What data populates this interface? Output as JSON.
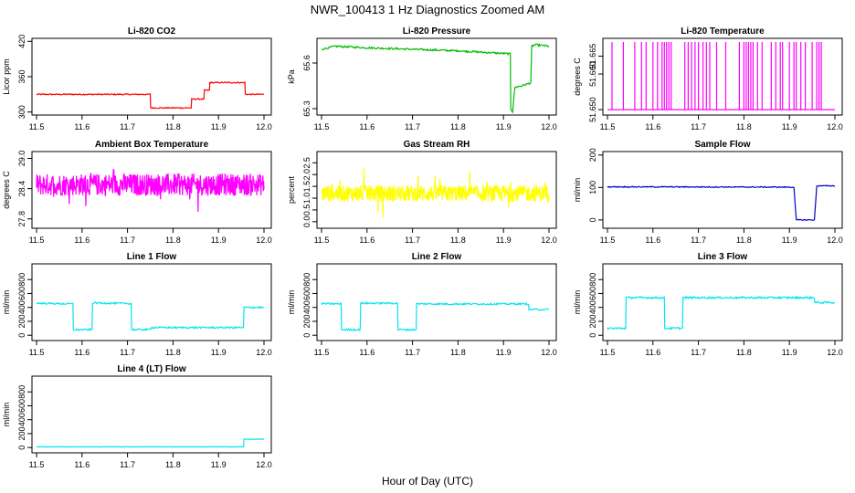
{
  "main_title": "NWR_100413  1 Hz Diagnostics Zoomed AM",
  "xlabel": "Hour of Day (UTC)",
  "chart_data": [
    {
      "type": "line",
      "title": "Li-820 CO2",
      "ylabel": "Licor ppm",
      "color": "#ff0000",
      "xlim": [
        11.5,
        12.0
      ],
      "ylim": [
        298,
        422
      ],
      "yticks": [
        "300",
        "360",
        "420"
      ],
      "ytick_values": [
        300,
        360,
        420
      ],
      "xticks": [
        "11.5",
        "11.6",
        "11.7",
        "11.8",
        "11.9",
        "12.0"
      ],
      "noise": 1,
      "series": [
        {
          "x": [
            11.5,
            11.75,
            11.751,
            11.84,
            11.841,
            11.868,
            11.869,
            11.88,
            11.881,
            11.958,
            11.959,
            12.0
          ],
          "y": [
            330,
            330,
            307,
            307,
            322,
            322,
            337,
            337,
            350,
            350,
            330,
            330
          ]
        }
      ]
    },
    {
      "type": "line",
      "title": "Li-820 Pressure",
      "ylabel": "kPa",
      "color": "#00bb00",
      "xlim": [
        11.5,
        12.0
      ],
      "ylim": [
        65.27,
        65.75
      ],
      "yticks": [
        "65.3",
        "65.6"
      ],
      "ytick_values": [
        65.3,
        65.6
      ],
      "xticks": [
        "11.5",
        "11.6",
        "11.7",
        "11.8",
        "11.9",
        "12.0"
      ],
      "noise": 0.006,
      "series": [
        {
          "x": [
            11.5,
            11.53,
            11.6,
            11.8,
            11.915,
            11.916,
            11.92,
            11.925,
            11.94,
            11.95,
            11.96,
            11.962,
            11.97,
            12.0
          ],
          "y": [
            65.69,
            65.71,
            65.7,
            65.68,
            65.66,
            65.3,
            65.28,
            65.44,
            65.45,
            65.46,
            65.47,
            65.71,
            65.72,
            65.71
          ]
        }
      ]
    },
    {
      "type": "line",
      "title": "Li-820 Temperature",
      "ylabel": "degrees C",
      "color": "#ff00ff",
      "xlim": [
        11.5,
        12.0
      ],
      "ylim": [
        51.649,
        51.6695
      ],
      "yticks": [
        "51.650",
        "51.660",
        "51.665"
      ],
      "ytick_values": [
        51.65,
        51.66,
        51.665
      ],
      "xticks": [
        "11.5",
        "11.6",
        "11.7",
        "11.8",
        "11.9",
        "12.0"
      ],
      "mode": "spikes",
      "base": 51.65,
      "peak": 51.669,
      "spike_x": [
        11.51,
        11.535,
        11.56,
        11.575,
        11.585,
        11.6,
        11.61,
        11.62,
        11.625,
        11.63,
        11.635,
        11.64,
        11.67,
        11.678,
        11.685,
        11.692,
        11.7,
        11.71,
        11.718,
        11.725,
        11.74,
        11.76,
        11.79,
        11.8,
        11.805,
        11.81,
        11.815,
        11.82,
        11.83,
        11.84,
        11.86,
        11.87,
        11.88,
        11.885,
        11.9,
        11.91,
        11.915,
        11.925,
        11.935,
        11.95,
        11.96,
        11.965,
        11.97
      ]
    },
    {
      "type": "line",
      "title": "Ambient Box Temperature",
      "ylabel": "degrees C",
      "color": "#ff00ff",
      "xlim": [
        11.5,
        12.0
      ],
      "ylim": [
        27.65,
        29.1
      ],
      "yticks": [
        "27.8",
        "28.4",
        "29.0"
      ],
      "ytick_values": [
        27.8,
        28.4,
        29.0
      ],
      "xticks": [
        "11.5",
        "11.6",
        "11.7",
        "11.8",
        "11.9",
        "12.0"
      ],
      "mode": "noise",
      "mean": 28.48,
      "amp": 0.22,
      "outlier": 0.5
    },
    {
      "type": "line",
      "title": "Gas Stream RH",
      "ylabel": "percent",
      "color": "#ffff00",
      "xlim": [
        11.5,
        12.0
      ],
      "ylim": [
        -0.2,
        2.9
      ],
      "yticks": [
        "0.0",
        "0.5",
        "1.0",
        "1.5",
        "2.0",
        "2.5"
      ],
      "ytick_values": [
        0,
        0.5,
        1.0,
        1.5,
        2.0,
        2.5
      ],
      "xticks": [
        "11.5",
        "11.6",
        "11.7",
        "11.8",
        "11.9",
        "12.0"
      ],
      "mode": "noise",
      "mean": 1.2,
      "amp": 0.35,
      "outlier": 0.9
    },
    {
      "type": "line",
      "title": "Sample Flow",
      "ylabel": "ml/min",
      "color": "#0000cc",
      "xlim": [
        11.5,
        12.0
      ],
      "ylim": [
        -20,
        205
      ],
      "yticks": [
        "0",
        "100",
        "200"
      ],
      "ytick_values": [
        0,
        100,
        200
      ],
      "xticks": [
        "11.5",
        "11.6",
        "11.7",
        "11.8",
        "11.9",
        "12.0"
      ],
      "noise": 1.5,
      "series": [
        {
          "x": [
            11.5,
            11.91,
            11.915,
            11.955,
            11.96,
            12.0
          ],
          "y": [
            102,
            101,
            0,
            0,
            105,
            105
          ]
        }
      ]
    },
    {
      "type": "line",
      "title": "Line 1 Flow",
      "ylabel": "ml/min",
      "color": "#00e5ee",
      "xlim": [
        11.5,
        12.0
      ],
      "ylim": [
        -50,
        1000
      ],
      "yticks": [
        "0",
        "200",
        "400",
        "600",
        "800"
      ],
      "ytick_values": [
        0,
        200,
        400,
        600,
        800
      ],
      "xticks": [
        "11.5",
        "11.6",
        "11.7",
        "11.8",
        "11.9",
        "12.0"
      ],
      "noise": 12,
      "series": [
        {
          "x": [
            11.5,
            11.58,
            11.581,
            11.622,
            11.623,
            11.708,
            11.709,
            11.75,
            11.751,
            11.955,
            11.956,
            12.0
          ],
          "y": [
            460,
            450,
            80,
            80,
            465,
            455,
            80,
            80,
            110,
            110,
            400,
            400
          ]
        }
      ]
    },
    {
      "type": "line",
      "title": "Line 2 Flow",
      "ylabel": "ml/min",
      "color": "#00e5ee",
      "xlim": [
        11.5,
        12.0
      ],
      "ylim": [
        -50,
        1000
      ],
      "yticks": [
        "0",
        "200",
        "400",
        "600",
        "800"
      ],
      "ytick_values": [
        0,
        200,
        400,
        600,
        800
      ],
      "xticks": [
        "11.5",
        "11.6",
        "11.7",
        "11.8",
        "11.9",
        "12.0"
      ],
      "noise": 12,
      "series": [
        {
          "x": [
            11.5,
            11.543,
            11.544,
            11.585,
            11.586,
            11.667,
            11.668,
            11.708,
            11.709,
            11.955,
            11.956,
            12.0
          ],
          "y": [
            455,
            450,
            80,
            80,
            460,
            460,
            80,
            80,
            450,
            450,
            370,
            370
          ]
        }
      ]
    },
    {
      "type": "line",
      "title": "Line 3 Flow",
      "ylabel": "ml/min",
      "color": "#00e5ee",
      "xlim": [
        11.5,
        12.0
      ],
      "ylim": [
        -50,
        1000
      ],
      "yticks": [
        "0",
        "200",
        "400",
        "600",
        "800"
      ],
      "ytick_values": [
        0,
        200,
        400,
        600,
        800
      ],
      "xticks": [
        "11.5",
        "11.6",
        "11.7",
        "11.8",
        "11.9",
        "12.0"
      ],
      "noise": 14,
      "series": [
        {
          "x": [
            11.5,
            11.54,
            11.541,
            11.625,
            11.626,
            11.665,
            11.666,
            11.955,
            11.956,
            12.0
          ],
          "y": [
            100,
            100,
            540,
            540,
            100,
            100,
            540,
            540,
            470,
            470
          ]
        }
      ]
    },
    {
      "type": "line",
      "title": "Line 4 (LT) Flow",
      "ylabel": "ml/min",
      "color": "#00e5ee",
      "xlim": [
        11.5,
        12.0
      ],
      "ylim": [
        -50,
        1000
      ],
      "yticks": [
        "0",
        "200",
        "400",
        "600",
        "800"
      ],
      "ytick_values": [
        0,
        200,
        400,
        600,
        800
      ],
      "xticks": [
        "11.5",
        "11.6",
        "11.7",
        "11.8",
        "11.9",
        "12.0"
      ],
      "noise": 2,
      "series": [
        {
          "x": [
            11.5,
            11.955,
            11.956,
            12.0
          ],
          "y": [
            10,
            10,
            120,
            120
          ]
        }
      ]
    }
  ]
}
